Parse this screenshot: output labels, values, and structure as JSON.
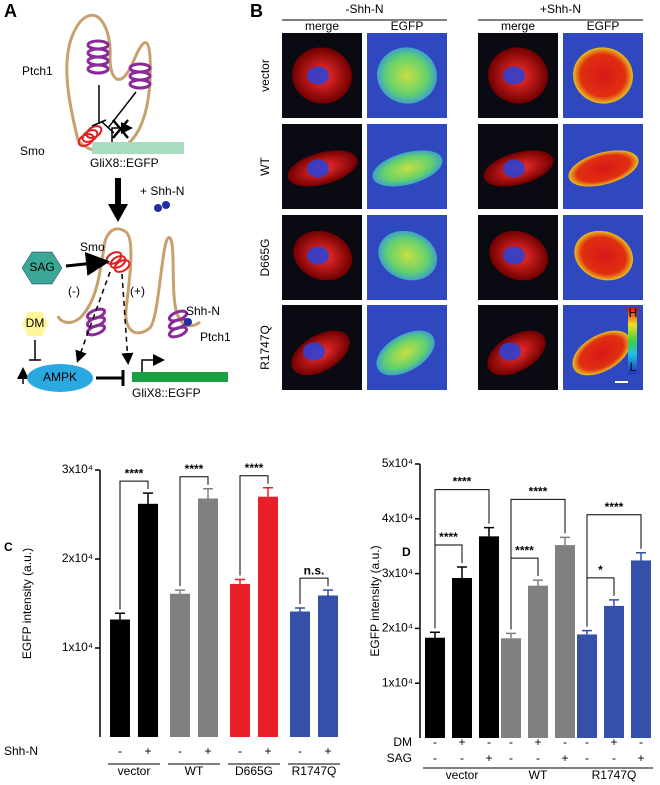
{
  "panel_a": {
    "label": "A",
    "ptch1_top": "Ptch1",
    "smo_top": "Smo",
    "reporter_top": "GliX8::EGFP",
    "shh_added": "+ Shh-N",
    "sag": "SAG",
    "smo_bottom": "Smo",
    "minus": "(-)",
    "plus": "(+)",
    "shh_bound": "Shh-N",
    "ptch1_bottom": "Ptch1",
    "dm": "DM",
    "ampk": "AMPK",
    "reporter_bottom": "GliX8::EGFP"
  },
  "panel_b": {
    "label": "B",
    "conditions": [
      "-Shh-N",
      "+Shh-N"
    ],
    "columns": [
      "merge",
      "EGFP"
    ],
    "rows": [
      "vector",
      "WT",
      "D665G",
      "R1747Q"
    ],
    "scale_high": "H",
    "scale_low": "L"
  },
  "chart_data": [
    {
      "type": "bar",
      "panel": "C",
      "y_label": "EGFP intensity (a.u.)",
      "ylim": [
        0,
        30000
      ],
      "yticks": [
        {
          "value": 10000,
          "label": "1x10⁴"
        },
        {
          "value": 20000,
          "label": "2x10⁴"
        },
        {
          "value": 30000,
          "label": "3x10⁴"
        }
      ],
      "groups": [
        {
          "name": "vector",
          "color": "#000000",
          "values": [
            13200,
            26200
          ],
          "errors": [
            700,
            1200
          ],
          "significance": [
            "****"
          ]
        },
        {
          "name": "WT",
          "color": "#808080",
          "values": [
            16100,
            26800
          ],
          "errors": [
            400,
            1100
          ],
          "significance": [
            "****"
          ]
        },
        {
          "name": "D665G",
          "color": "#e8202a",
          "values": [
            17200,
            27000
          ],
          "errors": [
            500,
            1000
          ],
          "significance": [
            "****"
          ]
        },
        {
          "name": "R1747Q",
          "color": "#3450a8",
          "values": [
            14100,
            15900
          ],
          "errors": [
            400,
            600
          ],
          "significance": [
            "n.s."
          ]
        }
      ],
      "conditions": [
        {
          "name": "Shh-N",
          "signs": [
            "-",
            "+"
          ]
        }
      ]
    },
    {
      "type": "bar",
      "panel": "D",
      "y_label": "EGFP intensity (a.u.)",
      "ylim": [
        0,
        50000
      ],
      "yticks": [
        {
          "value": 10000,
          "label": "1x10⁴"
        },
        {
          "value": 20000,
          "label": "2x10⁴"
        },
        {
          "value": 30000,
          "label": "3x10⁴"
        },
        {
          "value": 40000,
          "label": "4x10⁴"
        },
        {
          "value": 50000,
          "label": "5x10⁴"
        }
      ],
      "groups": [
        {
          "name": "vector",
          "color": "#000000",
          "values": [
            18300,
            29200,
            36800
          ],
          "errors": [
            1000,
            2000,
            1600
          ],
          "significance": [
            "****",
            "****"
          ]
        },
        {
          "name": "WT",
          "color": "#808080",
          "values": [
            18200,
            27800,
            35200
          ],
          "errors": [
            900,
            1000,
            1400
          ],
          "significance": [
            "****",
            "****"
          ]
        },
        {
          "name": "R1747Q",
          "color": "#3450a8",
          "values": [
            18900,
            24100,
            32400
          ],
          "errors": [
            700,
            1100,
            1400
          ],
          "significance": [
            "*",
            "****"
          ]
        }
      ],
      "conditions": [
        {
          "name": "DM",
          "signs": [
            "-",
            "+",
            "-"
          ]
        },
        {
          "name": "SAG",
          "signs": [
            "-",
            "-",
            "+"
          ]
        }
      ]
    }
  ]
}
